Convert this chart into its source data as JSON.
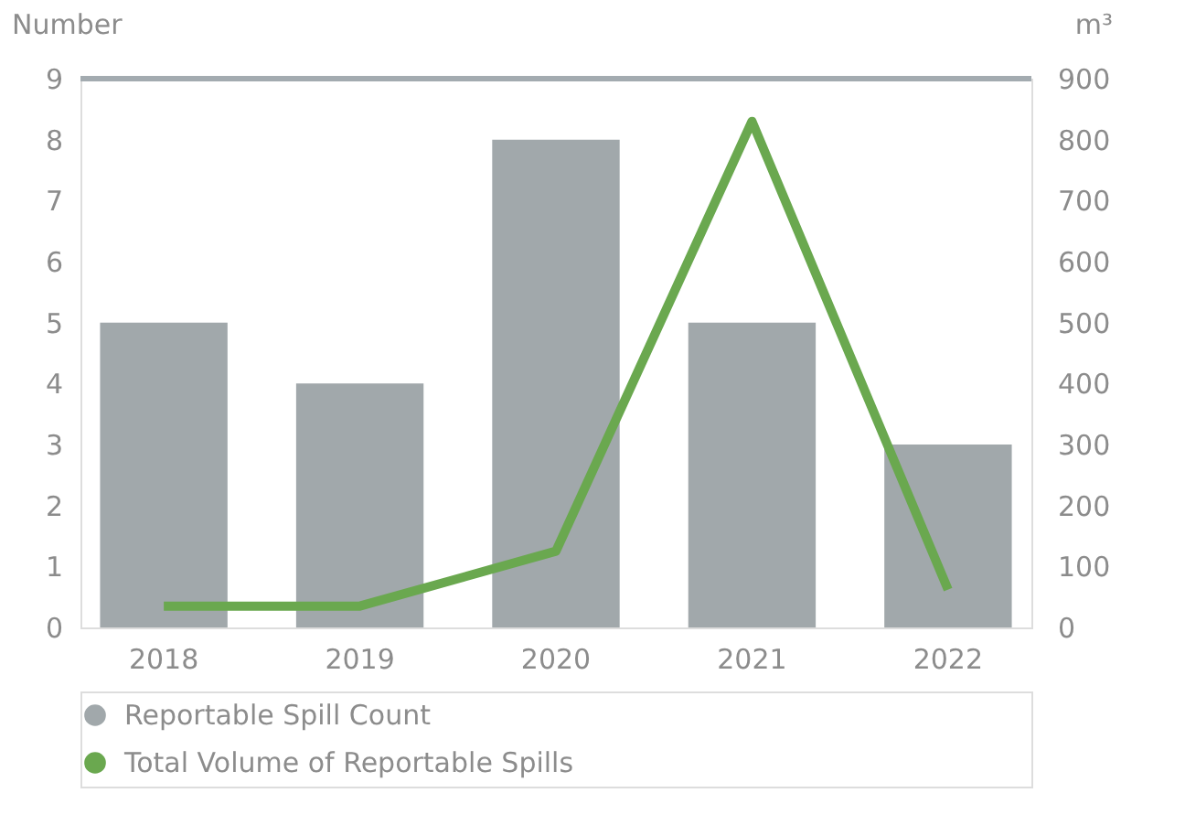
{
  "chart_data": {
    "type": "bar",
    "categories": [
      "2018",
      "2019",
      "2020",
      "2021",
      "2022"
    ],
    "ylabel": "Number",
    "y2label": "m³",
    "ylim": [
      0,
      9
    ],
    "yticks": [
      0,
      1,
      2,
      3,
      4,
      5,
      6,
      7,
      8,
      9
    ],
    "y2lim": [
      0,
      900
    ],
    "y2ticks": [
      0,
      100,
      200,
      300,
      400,
      500,
      600,
      700,
      800,
      900
    ],
    "series": [
      {
        "name": "Reportable Spill Count",
        "color": "#a1a8ab",
        "values": [
          5,
          4,
          8,
          5,
          3
        ]
      },
      {
        "name": "Total Volume of Reportable Spills",
        "type": "line",
        "axis": "y2",
        "color": "#6aa84f",
        "values": [
          35,
          35,
          125,
          830,
          62
        ]
      }
    ],
    "grid": false,
    "legend": "bottom left",
    "line_style": "solid",
    "marker": "none"
  }
}
